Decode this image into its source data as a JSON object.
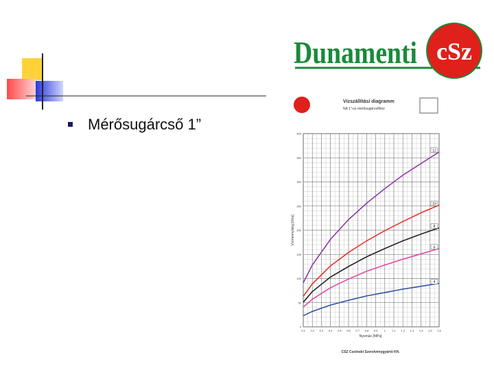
{
  "slide": {
    "bullet_text": "Mérősugárcső 1”"
  },
  "logo": {
    "text": "Dunamenti",
    "badge": "cSz"
  },
  "chart_data": {
    "type": "line",
    "title": "Vízszállítási diagramm",
    "subtitle": "NA 1\"-os mérősugárcsőhöz",
    "x_label": "Nyomás [MPa]",
    "y_label": "Vízmennyiség [l/óra]",
    "x": [
      0.1,
      0.2,
      0.4,
      0.6,
      0.8,
      1.0,
      1.2,
      1.4,
      1.6
    ],
    "series": [
      {
        "name": "12",
        "color": "#8e3aa8",
        "values": [
          91,
          128,
          181,
          222,
          256,
          286,
          314,
          338,
          362
        ]
      },
      {
        "name": "10",
        "color": "#e8332a",
        "values": [
          63,
          89,
          126,
          154,
          178,
          199,
          218,
          236,
          252
        ]
      },
      {
        "name": "8",
        "color": "#222222",
        "values": [
          51,
          73,
          103,
          125,
          145,
          162,
          178,
          192,
          205
        ]
      },
      {
        "name": "6",
        "color": "#e04aa8",
        "values": [
          41,
          57,
          81,
          99,
          115,
          128,
          140,
          151,
          162
        ]
      },
      {
        "name": "4",
        "color": "#3050a0",
        "values": [
          23,
          32,
          45,
          55,
          64,
          71,
          78,
          84,
          90
        ]
      }
    ],
    "xlim": [
      0.1,
      1.6
    ],
    "xticks": [
      0.1,
      0.2,
      0.3,
      0.4,
      0.5,
      0.6,
      0.7,
      0.8,
      0.9,
      1.0,
      1.1,
      1.2,
      1.3,
      1.4,
      1.5,
      1.6
    ],
    "ylim": [
      0,
      400
    ],
    "yticks": [
      0,
      50,
      100,
      150,
      200,
      250,
      300,
      350,
      400
    ],
    "grid": true,
    "footer": "CSZ Csolnoki Szerelvénygyártó Kft."
  }
}
